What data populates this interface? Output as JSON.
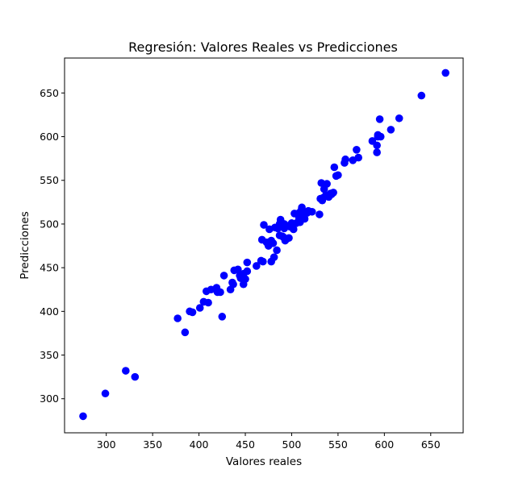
{
  "chart_data": {
    "type": "scatter",
    "title": "Regresión: Valores Reales vs Predicciones",
    "xlabel": "Valores reales",
    "ylabel": "Predicciones",
    "xlim": [
      255,
      685
    ],
    "ylim": [
      261,
      690
    ],
    "xticks": [
      300,
      350,
      400,
      450,
      500,
      550,
      600,
      650
    ],
    "yticks": [
      300,
      350,
      400,
      450,
      500,
      550,
      600,
      650
    ],
    "grid": false,
    "legend": "none",
    "marker_color": "#0000ff",
    "points": [
      [
        275,
        280
      ],
      [
        299,
        306
      ],
      [
        321,
        332
      ],
      [
        331,
        325
      ],
      [
        377,
        392
      ],
      [
        385,
        376
      ],
      [
        390,
        400
      ],
      [
        393,
        399
      ],
      [
        401,
        404
      ],
      [
        405,
        411
      ],
      [
        408,
        423
      ],
      [
        410,
        410
      ],
      [
        413,
        425
      ],
      [
        418,
        425
      ],
      [
        419,
        427
      ],
      [
        420,
        422
      ],
      [
        423,
        422
      ],
      [
        425,
        394
      ],
      [
        427,
        441
      ],
      [
        434,
        425
      ],
      [
        436,
        433
      ],
      [
        437,
        431
      ],
      [
        438,
        447
      ],
      [
        442,
        448
      ],
      [
        444,
        441
      ],
      [
        445,
        438
      ],
      [
        448,
        431
      ],
      [
        448,
        443
      ],
      [
        450,
        437
      ],
      [
        452,
        446
      ],
      [
        452,
        456
      ],
      [
        462,
        452
      ],
      [
        467,
        458
      ],
      [
        468,
        482
      ],
      [
        469,
        457
      ],
      [
        470,
        499
      ],
      [
        473,
        479
      ],
      [
        475,
        475
      ],
      [
        476,
        494
      ],
      [
        478,
        481
      ],
      [
        478,
        457
      ],
      [
        480,
        478
      ],
      [
        481,
        462
      ],
      [
        482,
        496
      ],
      [
        484,
        470
      ],
      [
        485,
        495
      ],
      [
        487,
        500
      ],
      [
        487,
        487
      ],
      [
        488,
        505
      ],
      [
        490,
        486
      ],
      [
        491,
        485
      ],
      [
        492,
        500
      ],
      [
        492,
        495
      ],
      [
        493,
        481
      ],
      [
        495,
        498
      ],
      [
        497,
        484
      ],
      [
        498,
        497
      ],
      [
        500,
        501
      ],
      [
        502,
        494
      ],
      [
        503,
        512
      ],
      [
        505,
        501
      ],
      [
        507,
        512
      ],
      [
        508,
        507
      ],
      [
        509,
        502
      ],
      [
        510,
        515
      ],
      [
        511,
        519
      ],
      [
        512,
        510
      ],
      [
        514,
        506
      ],
      [
        515,
        512
      ],
      [
        517,
        513
      ],
      [
        518,
        515
      ],
      [
        522,
        514
      ],
      [
        530,
        511
      ],
      [
        531,
        529
      ],
      [
        532,
        547
      ],
      [
        533,
        527
      ],
      [
        534,
        530
      ],
      [
        535,
        540
      ],
      [
        536,
        545
      ],
      [
        537,
        533
      ],
      [
        538,
        546
      ],
      [
        540,
        531
      ],
      [
        542,
        535
      ],
      [
        543,
        534
      ],
      [
        545,
        536
      ],
      [
        546,
        565
      ],
      [
        548,
        555
      ],
      [
        550,
        556
      ],
      [
        557,
        570
      ],
      [
        558,
        574
      ],
      [
        566,
        573
      ],
      [
        570,
        585
      ],
      [
        572,
        576
      ],
      [
        587,
        595
      ],
      [
        592,
        590
      ],
      [
        592,
        582
      ],
      [
        593,
        600
      ],
      [
        593,
        602
      ],
      [
        595,
        620
      ],
      [
        596,
        600
      ],
      [
        607,
        608
      ],
      [
        616,
        621
      ],
      [
        640,
        647
      ],
      [
        666,
        673
      ]
    ]
  }
}
